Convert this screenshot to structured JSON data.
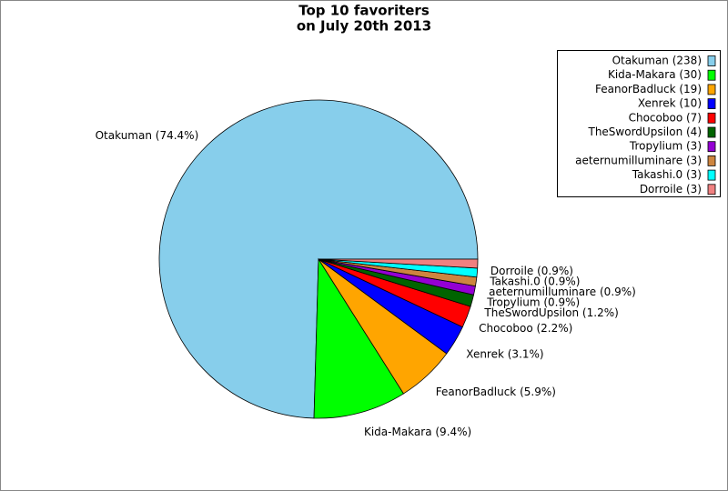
{
  "chart_data": {
    "type": "pie",
    "title": "Top 10 favoriters",
    "subtitle": "on July 20th 2013",
    "values": [
      74.4,
      9.4,
      5.9,
      3.1,
      2.2,
      1.2,
      0.9,
      0.9,
      0.9,
      0.9
    ],
    "value_labels": [
      "Otakuman (74.4%)",
      "Kida-Makara (9.4%)",
      "FeanorBadluck (5.9%)",
      "Xenrek (3.1%)",
      "Chocoboo (2.2%)",
      "TheSwordUpsilon (1.2%)",
      "Tropylium (0.9%)",
      "aeternumilluminare (0.9%)",
      "Takashi.0 (0.9%)",
      "Dorroile (0.9%)"
    ],
    "legend": [
      "Otakuman (238)",
      "Kida-Makara (30)",
      "FeanorBadluck (19)",
      "Xenrek (10)",
      "Chocoboo (7)",
      "TheSwordUpsilon (4)",
      "Tropylium (3)",
      "aeternumilluminare (3)",
      "Takashi.0 (3)",
      "Dorroile (3)"
    ],
    "colors": [
      "#87ceeb",
      "#00ff00",
      "#ffa500",
      "#0000ff",
      "#ff0000",
      "#006400",
      "#9400d3",
      "#cd853f",
      "#00ffff",
      "#f08080"
    ],
    "legend_position": "top-right"
  }
}
